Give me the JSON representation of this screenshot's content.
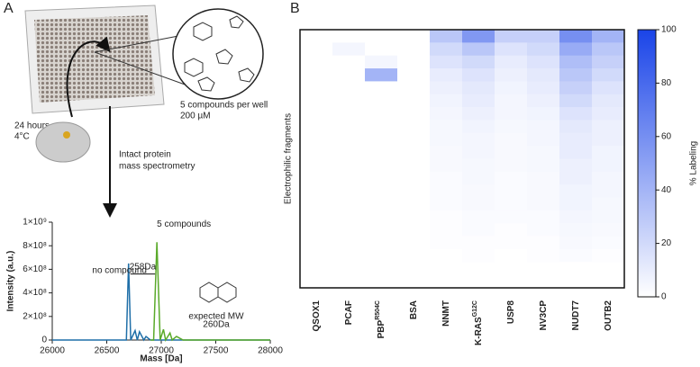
{
  "panel_a": {
    "letter": "A",
    "time": "24 hours",
    "temp": "4°C",
    "compounds": "5 compounds per well",
    "conc": "200 µM",
    "method_1": "Intact protein",
    "method_2": "mass spectrometry",
    "delta": "258Da",
    "mw_1": "expected MW",
    "mw_2": "260Da"
  },
  "panel_b": {
    "letter": "B"
  },
  "chart_data": [
    {
      "type": "line",
      "xlabel": "Mass [Da]",
      "ylabel": "Intensity (a.u.)",
      "xlim": [
        26000,
        28000
      ],
      "xticks": [
        26000,
        26500,
        27000,
        27500,
        28000
      ],
      "ylim": [
        0,
        1000000000
      ],
      "yticks": [
        0,
        {
          "value": 200000000,
          "label": "2×10⁸"
        },
        {
          "value": 400000000,
          "label": "4×10⁸"
        },
        {
          "value": 600000000,
          "label": "6×10⁸"
        },
        {
          "value": 800000000,
          "label": "8×10⁸"
        },
        {
          "value": 1000000000,
          "label": "1×10⁹"
        }
      ],
      "series": [
        {
          "name": "no compound",
          "color": "#1f6fa8",
          "x": [
            26000,
            26680,
            26700,
            26720,
            26760,
            26780,
            26800,
            26840,
            26860,
            26900,
            28000
          ],
          "values": [
            0,
            0,
            650000000,
            0,
            80000000,
            0,
            70000000,
            0,
            30000000,
            0,
            0
          ]
        },
        {
          "name": "5 compounds",
          "color": "#5aaa2a",
          "x": [
            26900,
            26930,
            26960,
            26990,
            27020,
            27040,
            27080,
            27100,
            27140,
            27200,
            28000
          ],
          "values": [
            0,
            0,
            830000000,
            0,
            90000000,
            0,
            60000000,
            0,
            30000000,
            0,
            0
          ]
        }
      ]
    },
    {
      "type": "heatmap",
      "ylabel": "Electrophilic fragments",
      "colorbar_label": "% Labeling",
      "categories": [
        "QSOX1",
        "PCAF",
        "PBP",
        "BSA",
        "NNMT",
        "K-RAS",
        "USP8",
        "NV3CP",
        "NUDT7",
        "OUTB2"
      ],
      "category_superscripts": [
        null,
        null,
        "R504C",
        null,
        null,
        "G12C",
        null,
        null,
        null,
        null
      ],
      "color": "#1a44e8",
      "clim": [
        0,
        100
      ],
      "cticks": [
        0,
        20,
        40,
        60,
        80,
        100
      ],
      "values": [
        [
          0,
          0,
          0,
          0,
          30,
          55,
          25,
          25,
          60,
          40
        ],
        [
          0,
          5,
          0,
          0,
          20,
          30,
          15,
          20,
          45,
          30
        ],
        [
          0,
          0,
          5,
          0,
          15,
          20,
          10,
          15,
          35,
          25
        ],
        [
          0,
          0,
          40,
          0,
          10,
          15,
          8,
          12,
          30,
          20
        ],
        [
          0,
          0,
          0,
          0,
          8,
          12,
          6,
          10,
          25,
          15
        ],
        [
          0,
          0,
          0,
          0,
          6,
          10,
          5,
          8,
          20,
          12
        ],
        [
          0,
          0,
          0,
          0,
          5,
          8,
          5,
          6,
          15,
          10
        ],
        [
          0,
          0,
          0,
          0,
          4,
          6,
          4,
          5,
          12,
          8
        ],
        [
          0,
          0,
          0,
          0,
          4,
          5,
          3,
          5,
          10,
          8
        ],
        [
          0,
          0,
          0,
          0,
          3,
          5,
          3,
          4,
          10,
          6
        ],
        [
          0,
          0,
          0,
          0,
          3,
          4,
          3,
          4,
          8,
          6
        ],
        [
          0,
          0,
          0,
          0,
          2,
          4,
          2,
          3,
          8,
          5
        ],
        [
          0,
          0,
          0,
          0,
          2,
          3,
          2,
          3,
          6,
          5
        ],
        [
          0,
          0,
          0,
          0,
          2,
          3,
          2,
          3,
          6,
          4
        ],
        [
          0,
          0,
          0,
          0,
          1,
          2,
          2,
          2,
          5,
          4
        ],
        [
          0,
          0,
          0,
          0,
          1,
          2,
          1,
          2,
          4,
          3
        ],
        [
          0,
          0,
          0,
          0,
          1,
          1,
          1,
          1,
          3,
          2
        ],
        [
          0,
          0,
          0,
          0,
          0,
          1,
          0,
          1,
          2,
          1
        ],
        [
          0,
          0,
          0,
          0,
          0,
          0,
          0,
          0,
          0,
          0
        ],
        [
          0,
          0,
          0,
          0,
          0,
          0,
          0,
          0,
          0,
          0
        ]
      ]
    }
  ]
}
